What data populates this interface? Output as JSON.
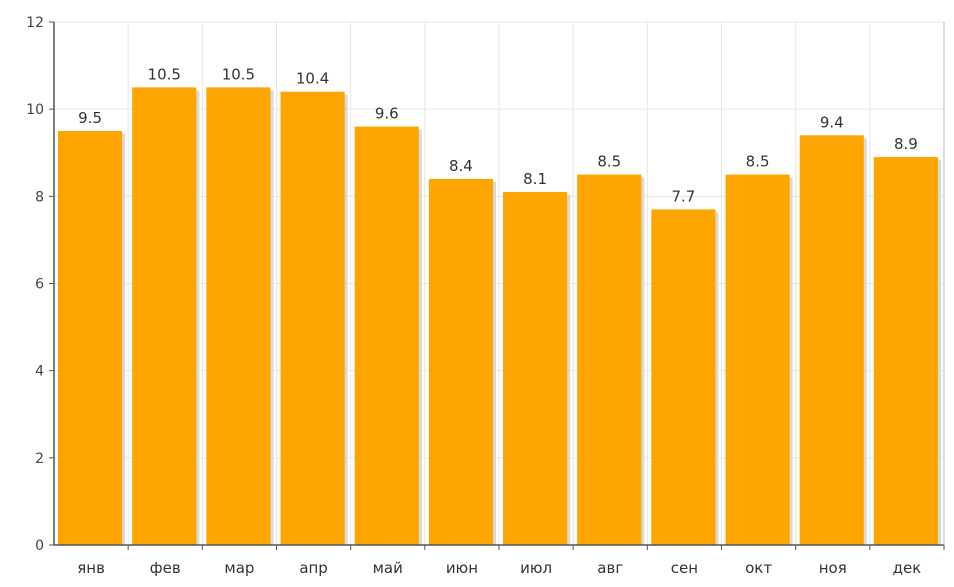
{
  "chart_data": {
    "type": "bar",
    "categories": [
      "янв",
      "фев",
      "мар",
      "апр",
      "май",
      "июн",
      "июл",
      "авг",
      "сен",
      "окт",
      "ноя",
      "дек"
    ],
    "values": [
      9.5,
      10.5,
      10.5,
      10.4,
      9.6,
      8.4,
      8.1,
      8.5,
      7.7,
      8.5,
      9.4,
      8.9
    ],
    "value_labels": [
      "9.5",
      "10.5",
      "10.5",
      "10.4",
      "9.6",
      "8.4",
      "8.1",
      "8.5",
      "7.7",
      "8.5",
      "9.4",
      "8.9"
    ],
    "y_ticks": [
      "0",
      "2",
      "4",
      "6",
      "8",
      "10",
      "12"
    ],
    "ylim": [
      0,
      12
    ],
    "title": "",
    "xlabel": "",
    "ylabel": "",
    "grid": true,
    "legend": "none",
    "colors": {
      "bar": "#FFA500",
      "bar_shadow": "#d9d9d9",
      "grid": "#e6e6e6",
      "axis": "#555555"
    }
  }
}
